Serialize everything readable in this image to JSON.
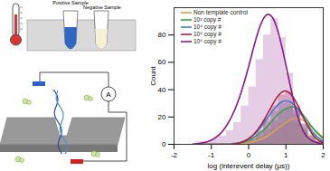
{
  "chart_data": {
    "type": "histogram",
    "x_label": "log (interevent delay (μs))",
    "y_label": "Count",
    "xlim": [
      -2,
      2
    ],
    "xticks": [
      -2,
      -1,
      0,
      1,
      2
    ],
    "ylim": [
      0,
      100
    ],
    "yticks": [
      0,
      20,
      40,
      60,
      80
    ],
    "legend": "top-left",
    "bins": [
      -1.4,
      -1.2,
      -1.0,
      -0.8,
      -0.6,
      -0.4,
      -0.2,
      0.0,
      0.2,
      0.4,
      0.6,
      0.8,
      1.0,
      1.2,
      1.4,
      1.6,
      1.8,
      2.0
    ],
    "fit_x": [
      -1.5,
      -1.25,
      -1,
      -0.75,
      -0.5,
      -0.25,
      0,
      0.25,
      0.5,
      0.75,
      1,
      1.25,
      1.5,
      1.75,
      2
    ],
    "series": [
      {
        "name": "Non template control",
        "color": "#d9a24e",
        "counts": [
          0,
          0,
          0,
          0,
          0,
          0,
          1,
          2,
          4,
          7,
          11,
          15,
          18,
          16,
          12,
          7,
          3
        ],
        "fit": [
          0,
          0,
          0,
          0,
          0,
          0,
          1,
          3,
          6,
          11,
          16,
          19,
          17,
          11,
          5
        ]
      },
      {
        "name": "10³ copy #",
        "color": "#3aa04a",
        "counts": [
          0,
          0,
          0,
          0,
          0,
          1,
          1,
          3,
          6,
          11,
          17,
          23,
          26,
          22,
          15,
          8,
          3
        ],
        "fit": [
          0,
          0,
          0,
          0,
          0,
          1,
          3,
          7,
          13,
          21,
          26,
          27,
          20,
          11,
          4
        ]
      },
      {
        "name": "10⁴ copy #",
        "color": "#3a7dc8",
        "counts": [
          0,
          0,
          0,
          0,
          0,
          1,
          2,
          4,
          9,
          16,
          24,
          30,
          31,
          24,
          14,
          6,
          2
        ],
        "fit": [
          0,
          0,
          0,
          0,
          0,
          1,
          4,
          10,
          19,
          28,
          32,
          28,
          18,
          8,
          2
        ]
      },
      {
        "name": "10⁵ copy #",
        "color": "#b0203a",
        "counts": [
          0,
          0,
          0,
          0,
          0,
          1,
          2,
          5,
          10,
          18,
          28,
          36,
          38,
          28,
          15,
          6,
          2
        ],
        "fit": [
          0,
          0,
          0,
          0,
          0,
          1,
          4,
          11,
          22,
          34,
          39,
          32,
          18,
          6,
          1
        ]
      },
      {
        "name": "10⁶ copy #",
        "color": "#8a1a8a",
        "counts": [
          2,
          2,
          4,
          6,
          10,
          16,
          28,
          42,
          62,
          80,
          92,
          78,
          52,
          26,
          10,
          3,
          1
        ],
        "fit": [
          0,
          1,
          3,
          8,
          18,
          34,
          57,
          82,
          95,
          86,
          58,
          27,
          8,
          2,
          0
        ]
      }
    ]
  },
  "diagram": {
    "tubes": [
      "Positive Sample",
      "Negative Sample"
    ],
    "meter": "A"
  }
}
